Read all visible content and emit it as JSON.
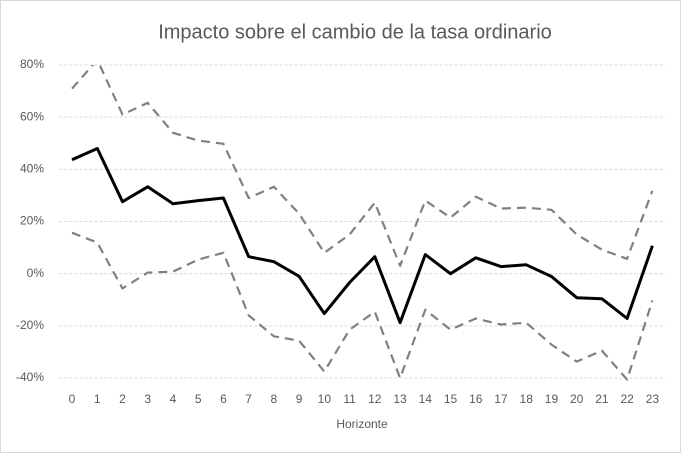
{
  "chart_data": {
    "type": "line",
    "title": "Impacto sobre el cambio de la tasa ordinario",
    "x_label": "Horizonte",
    "categories": [
      "0",
      "1",
      "2",
      "3",
      "4",
      "5",
      "6",
      "7",
      "8",
      "9",
      "10",
      "11",
      "12",
      "13",
      "14",
      "15",
      "16",
      "17",
      "18",
      "19",
      "20",
      "21",
      "22",
      "23"
    ],
    "series": [
      {
        "color": "#000000",
        "style": "solid",
        "values": [
          43.7,
          48,
          27.6,
          33.3,
          26.8,
          28,
          29,
          6.5,
          4.6,
          -1,
          -15.3,
          -3.4,
          6.5,
          -18.8,
          7.3,
          0,
          6.1,
          2.7,
          3.4,
          -1.1,
          -9.2,
          -9.6,
          -17.2,
          10.7
        ]
      },
      {
        "color": "#808080",
        "style": "dashed",
        "values": [
          70.9,
          82,
          61,
          65.5,
          54,
          51,
          49.8,
          29,
          33.3,
          23,
          8,
          15,
          27.2,
          3,
          28,
          21.5,
          29.5,
          25,
          25.3,
          24.5,
          15,
          9.2,
          5.7,
          31.8
        ]
      },
      {
        "color": "#808080",
        "style": "dashed",
        "values": [
          15.7,
          11.9,
          -5.7,
          0.4,
          0.8,
          5.4,
          8,
          -16,
          -24,
          -25.7,
          -37.5,
          -21.5,
          -14.6,
          -40,
          -13.8,
          -21.5,
          -17.2,
          -19.5,
          -18.8,
          -27.2,
          -33.7,
          -29.5,
          -40.6,
          -10.3
        ]
      }
    ],
    "ylim": [
      -40,
      80
    ],
    "yticks": [
      {
        "value": -40,
        "label": "-40%"
      },
      {
        "value": -20,
        "label": "-20%"
      },
      {
        "value": 0,
        "label": "0%"
      },
      {
        "value": 20,
        "label": "20%"
      },
      {
        "value": 40,
        "label": "40%"
      },
      {
        "value": 60,
        "label": "60%"
      },
      {
        "value": 80,
        "label": "80%"
      }
    ],
    "grid": true
  }
}
